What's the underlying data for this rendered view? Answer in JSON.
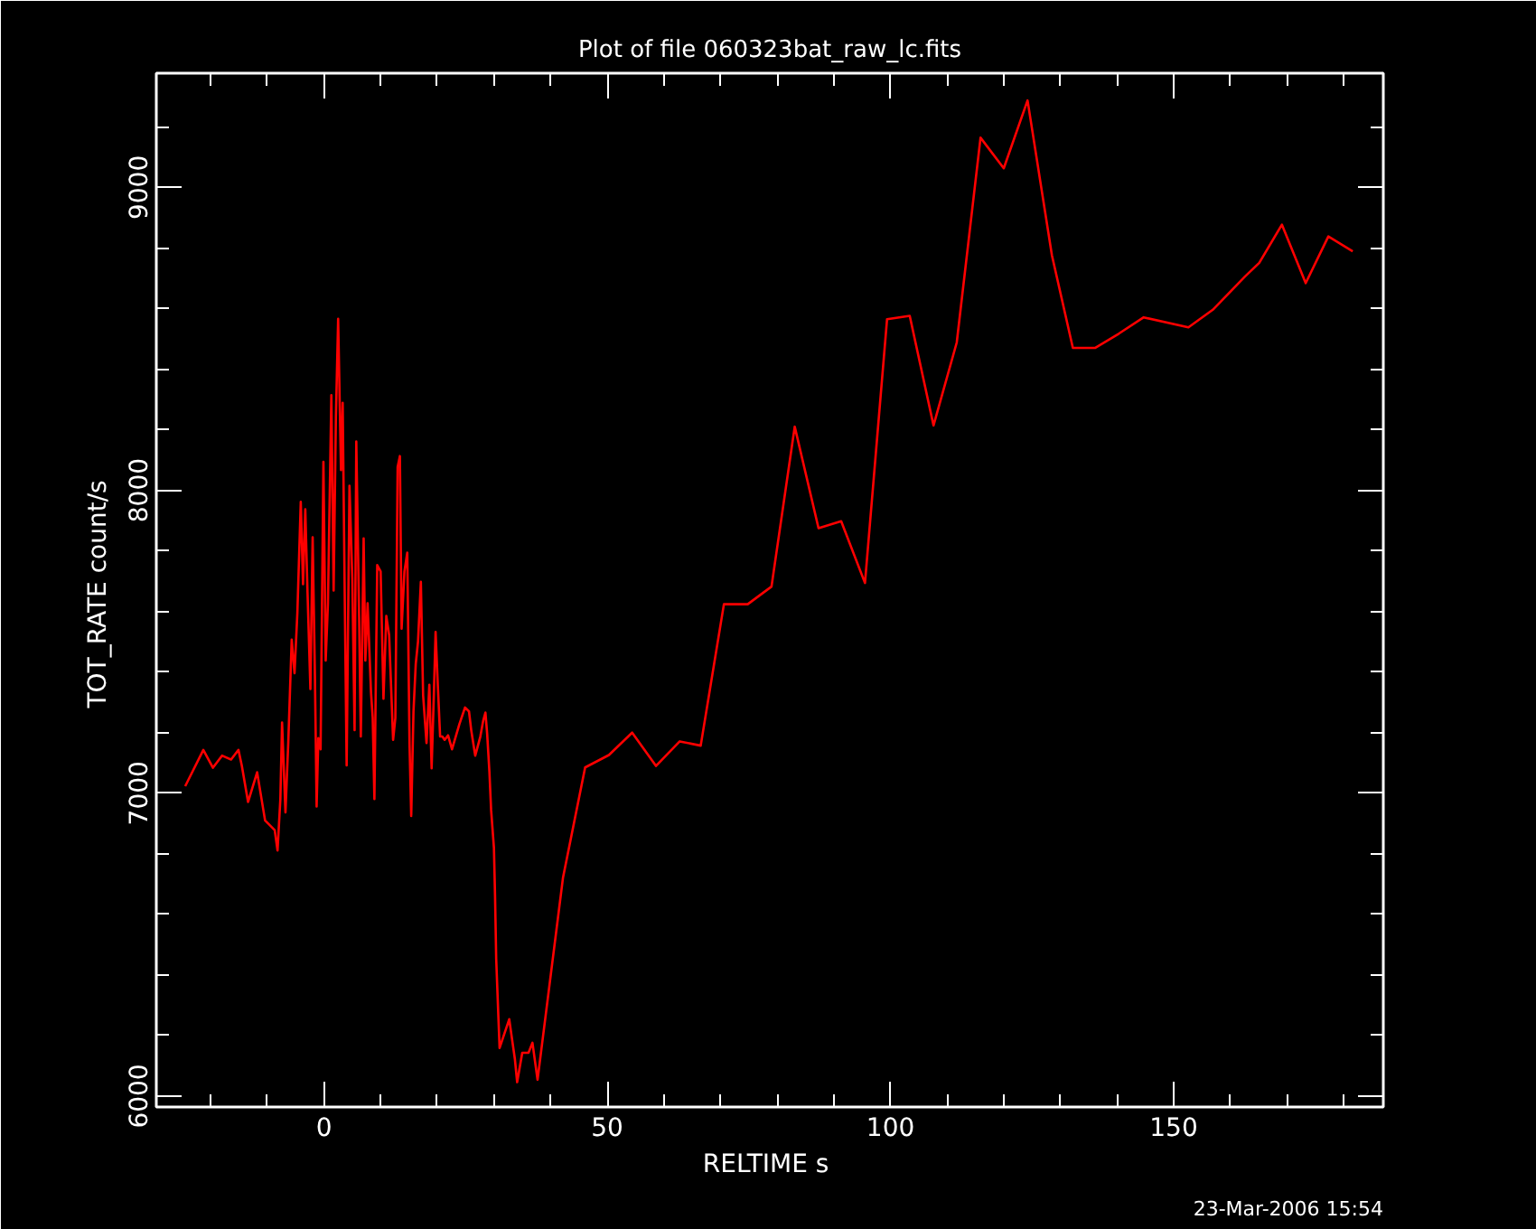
{
  "chart_data": {
    "type": "line",
    "title": "Plot of file 060323bat_raw_lc.fits",
    "xlabel": "RELTIME  s",
    "ylabel": "TOT_RATE  count/s",
    "annotations": [
      "23-Mar-2006 15:54"
    ],
    "xlim": [
      -29.6,
      187
    ],
    "ylim": [
      5964,
      9377
    ],
    "xticks": [
      {
        "value": -20,
        "label": null
      },
      {
        "value": -10,
        "label": null
      },
      0,
      {
        "value": 10,
        "label": null
      },
      {
        "value": 20,
        "label": null
      },
      {
        "value": 30,
        "label": null
      },
      {
        "value": 40,
        "label": null
      },
      50,
      {
        "value": 60,
        "label": null
      },
      {
        "value": 70,
        "label": null
      },
      {
        "value": 80,
        "label": null
      },
      {
        "value": 90,
        "label": null
      },
      100,
      {
        "value": 110,
        "label": null
      },
      {
        "value": 120,
        "label": null
      },
      {
        "value": 130,
        "label": null
      },
      {
        "value": 140,
        "label": null
      },
      150,
      {
        "value": 160,
        "label": null
      },
      {
        "value": 170,
        "label": null
      },
      {
        "value": 180,
        "label": null
      }
    ],
    "yticks": [
      6000,
      {
        "value": 6200,
        "label": null
      },
      {
        "value": 6400,
        "label": null
      },
      {
        "value": 6600,
        "label": null
      },
      {
        "value": 6800,
        "label": null
      },
      7000,
      {
        "value": 7200,
        "label": null
      },
      {
        "value": 7400,
        "label": null
      },
      {
        "value": 7600,
        "label": null
      },
      {
        "value": 7800,
        "label": null
      },
      8000,
      {
        "value": 8200,
        "label": null
      },
      {
        "value": 8400,
        "label": null
      },
      {
        "value": 8600,
        "label": null
      },
      {
        "value": 8800,
        "label": null
      },
      9000,
      {
        "value": 9200,
        "label": null
      }
    ],
    "grid": false,
    "series": [
      {
        "color": "#ff0000",
        "x": [
          -24.5,
          -21.3,
          -19.6,
          -18.0,
          -16.4,
          -15.1,
          -14.5,
          -13.4,
          -11.8,
          -10.4,
          -8.7,
          -8.2,
          -7.7,
          -7.4,
          -6.8,
          -6.3,
          -5.7,
          -5.2,
          -4.7,
          -4.1,
          -3.7,
          -3.3,
          -2.9,
          -2.4,
          -2.0,
          -1.6,
          -1.3,
          -1.0,
          -0.6,
          -0.1,
          0.3,
          0.7,
          1.3,
          1.7,
          2.1,
          2.5,
          3.0,
          3.3,
          3.7,
          4.0,
          4.5,
          5.0,
          5.4,
          5.7,
          6.2,
          6.5,
          7.0,
          7.3,
          7.7,
          8.3,
          8.6,
          8.9,
          9.4,
          10.0,
          10.5,
          11.0,
          11.5,
          11.8,
          12.2,
          12.6,
          13.0,
          13.4,
          13.7,
          14.2,
          14.7,
          15.1,
          15.4,
          15.8,
          16.2,
          16.6,
          17.1,
          17.5,
          18.1,
          18.6,
          19.0,
          19.4,
          19.7,
          20.1,
          20.5,
          20.9,
          21.3,
          21.9,
          22.6,
          23.9,
          24.9,
          25.6,
          26.0,
          26.7,
          27.6,
          28.1,
          28.5,
          28.8,
          29.2,
          29.5,
          30.0,
          30.2,
          30.4,
          30.8,
          31.0,
          32.7,
          33.1,
          33.7,
          34.1,
          35.0,
          36.1,
          36.8,
          37.7,
          42.2,
          46.1,
          50.3,
          54.4,
          58.6,
          62.8,
          66.5,
          70.6,
          74.8,
          79.0,
          83.1,
          87.3,
          91.3,
          95.5,
          99.4,
          103.4,
          107.6,
          111.7,
          115.9,
          120.0,
          124.2,
          128.5,
          132.2,
          136.1,
          140.3,
          144.7,
          152.6,
          156.9,
          162.6,
          165.1,
          169.1,
          173.3,
          177.3,
          181.6
        ],
        "values": [
          7023,
          7143,
          7084,
          7124,
          7111,
          7143,
          7090,
          6971,
          7069,
          6910,
          6878,
          6811,
          6981,
          7233,
          6937,
          7170,
          7507,
          7396,
          7595,
          7962,
          7690,
          7937,
          7658,
          7344,
          7845,
          7386,
          6956,
          7182,
          7145,
          8094,
          7438,
          7627,
          8314,
          7669,
          8241,
          8566,
          8067,
          8289,
          7585,
          7092,
          8015,
          7711,
          7208,
          8161,
          7585,
          7187,
          7841,
          7438,
          7627,
          7333,
          7249,
          6981,
          7753,
          7732,
          7312,
          7585,
          7522,
          7375,
          7176,
          7249,
          8077,
          8113,
          7543,
          7732,
          7794,
          7161,
          6925,
          7270,
          7427,
          7501,
          7698,
          7323,
          7166,
          7358,
          7082,
          7329,
          7532,
          7354,
          7187,
          7187,
          7176,
          7191,
          7145,
          7228,
          7283,
          7270,
          7207,
          7124,
          7187,
          7239,
          7266,
          7197,
          7071,
          6945,
          6820,
          6658,
          6453,
          6254,
          6159,
          6254,
          6201,
          6122,
          6046,
          6143,
          6143,
          6176,
          6054,
          6722,
          7085,
          7126,
          7200,
          7090,
          7171,
          7157,
          7624,
          7624,
          7682,
          8210,
          7875,
          7898,
          7694,
          8565,
          8576,
          8214,
          8488,
          9164,
          9063,
          9287,
          8776,
          8470,
          8470,
          8517,
          8571,
          8538,
          8596,
          8706,
          8751,
          8877,
          8684,
          8838,
          8789
        ]
      }
    ]
  }
}
